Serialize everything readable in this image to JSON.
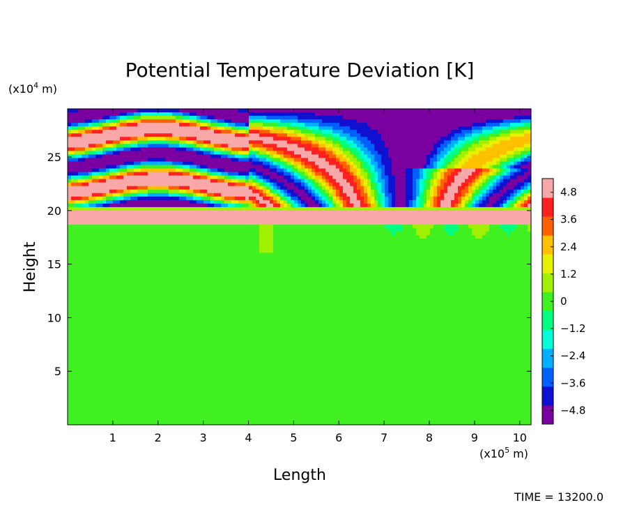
{
  "chart_data": {
    "type": "heatmap",
    "title": "Potential Temperature Deviation [K]",
    "xlabel": "Length",
    "ylabel": "Height",
    "x_unit_label": {
      "base": "(x10",
      "exp": "5",
      "tail": " m)"
    },
    "y_unit_label": {
      "base": "(x10",
      "exp": "4",
      "tail": " m)"
    },
    "x_scale_exponent": 5,
    "y_scale_exponent": 4,
    "xlim": [
      0,
      10.25
    ],
    "ylim": [
      0,
      29.5
    ],
    "x_ticks": [
      1,
      2,
      3,
      4,
      5,
      6,
      7,
      8,
      9,
      10
    ],
    "y_ticks": [
      5,
      10,
      15,
      20,
      25
    ],
    "colorbar": {
      "min": -5.4,
      "max": 5.4,
      "tick_values": [
        4.8,
        3.6,
        2.4,
        1.2,
        0,
        -1.2,
        -2.4,
        -3.6,
        -4.8
      ],
      "tick_labels": [
        "4.8",
        "3.6",
        "2.4",
        "1.2",
        "0",
        "−1.2",
        "−2.4",
        "−3.6",
        "−4.8"
      ],
      "palette": [
        "#7a00a0",
        "#1010d0",
        "#0060ff",
        "#00b0ff",
        "#00ffd8",
        "#00ff80",
        "#40f020",
        "#a0f000",
        "#e6f000",
        "#ffc000",
        "#ff6000",
        "#ff2020",
        "#f8a8a8"
      ]
    },
    "field_description": "Near-zero deviation below ~19x10^4 m; a warm (+5 K) band at ~19-20x10^4 m; alternating strong warm/cold wave bands above 20x10^4 m, arched over x=0-4x10^5 m and tilted fine-scale waves for x>4x10^5 m.",
    "time_label": "TIME = 13200.0"
  }
}
